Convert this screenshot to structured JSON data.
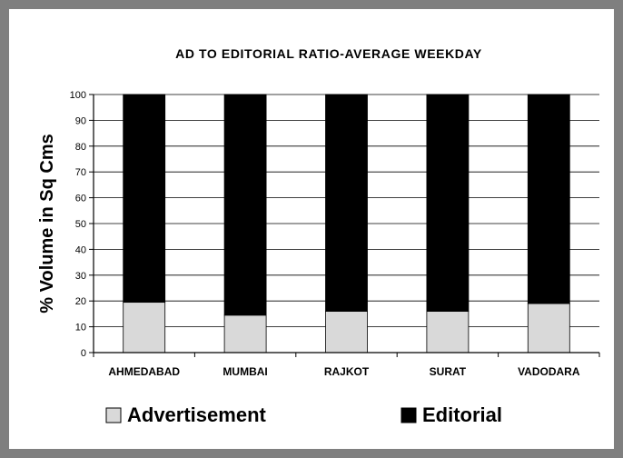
{
  "chart_data": {
    "type": "bar",
    "stacked": true,
    "title": "AD TO EDITORIAL RATIO-AVERAGE WEEKDAY",
    "xlabel": "",
    "ylabel": "% Volume in Sq Cms",
    "ylim": [
      0,
      100
    ],
    "yticks": [
      0,
      10,
      20,
      30,
      40,
      50,
      60,
      70,
      80,
      90,
      100
    ],
    "categories": [
      "AHMEDABAD",
      "MUMBAI",
      "RAJKOT",
      "SURAT",
      "VADODARA"
    ],
    "series": [
      {
        "name": "Advertisement",
        "color": "#d9d9d9",
        "values": [
          19.5,
          14.5,
          16,
          16,
          19
        ]
      },
      {
        "name": "Editorial",
        "color": "#000000",
        "values": [
          80.5,
          85.5,
          84,
          84,
          81
        ]
      }
    ],
    "grid": true,
    "legend_position": "bottom"
  }
}
